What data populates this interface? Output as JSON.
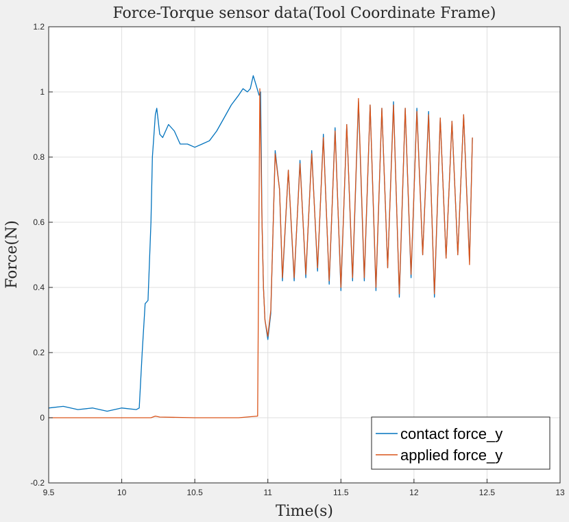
{
  "chart_data": {
    "type": "line",
    "title": "Force-Torque sensor data(Tool Coordinate Frame)",
    "xlabel": "Time(s)",
    "ylabel": "Force(N)",
    "xlim": [
      9.5,
      13
    ],
    "ylim": [
      -0.2,
      1.2
    ],
    "xticks": [
      "9.5",
      "10",
      "10.5",
      "11",
      "11.5",
      "12",
      "12.5",
      "13"
    ],
    "yticks": [
      "-0.2",
      "0",
      "0.2",
      "0.4",
      "0.6",
      "0.8",
      "1",
      "1.2"
    ],
    "grid": true,
    "legend_position": "bottom-right",
    "series": [
      {
        "name": "contact force_y",
        "color": "#0072BD",
        "points": [
          [
            9.5,
            0.03
          ],
          [
            9.6,
            0.035
          ],
          [
            9.7,
            0.025
          ],
          [
            9.8,
            0.03
          ],
          [
            9.9,
            0.02
          ],
          [
            10.0,
            0.03
          ],
          [
            10.1,
            0.025
          ],
          [
            10.12,
            0.03
          ],
          [
            10.14,
            0.2
          ],
          [
            10.16,
            0.35
          ],
          [
            10.18,
            0.36
          ],
          [
            10.2,
            0.6
          ],
          [
            10.21,
            0.8
          ],
          [
            10.23,
            0.93
          ],
          [
            10.24,
            0.95
          ],
          [
            10.26,
            0.87
          ],
          [
            10.28,
            0.86
          ],
          [
            10.32,
            0.9
          ],
          [
            10.36,
            0.88
          ],
          [
            10.4,
            0.84
          ],
          [
            10.45,
            0.84
          ],
          [
            10.5,
            0.83
          ],
          [
            10.55,
            0.84
          ],
          [
            10.6,
            0.85
          ],
          [
            10.65,
            0.88
          ],
          [
            10.7,
            0.92
          ],
          [
            10.75,
            0.96
          ],
          [
            10.8,
            0.99
          ],
          [
            10.83,
            1.01
          ],
          [
            10.86,
            1.0
          ],
          [
            10.88,
            1.01
          ],
          [
            10.9,
            1.05
          ],
          [
            10.92,
            1.02
          ],
          [
            10.94,
            0.99
          ],
          [
            10.95,
            1.0
          ],
          [
            10.96,
            0.6
          ],
          [
            10.97,
            0.4
          ],
          [
            10.98,
            0.3
          ],
          [
            11.0,
            0.24
          ],
          [
            11.02,
            0.32
          ],
          [
            11.05,
            0.82
          ],
          [
            11.08,
            0.7
          ],
          [
            11.1,
            0.42
          ],
          [
            11.14,
            0.76
          ],
          [
            11.18,
            0.42
          ],
          [
            11.22,
            0.79
          ],
          [
            11.26,
            0.43
          ],
          [
            11.3,
            0.82
          ],
          [
            11.34,
            0.45
          ],
          [
            11.38,
            0.87
          ],
          [
            11.42,
            0.41
          ],
          [
            11.46,
            0.89
          ],
          [
            11.5,
            0.39
          ],
          [
            11.54,
            0.9
          ],
          [
            11.58,
            0.42
          ],
          [
            11.62,
            0.97
          ],
          [
            11.66,
            0.42
          ],
          [
            11.7,
            0.96
          ],
          [
            11.74,
            0.39
          ],
          [
            11.78,
            0.95
          ],
          [
            11.82,
            0.46
          ],
          [
            11.86,
            0.97
          ],
          [
            11.9,
            0.37
          ],
          [
            11.94,
            0.95
          ],
          [
            11.98,
            0.43
          ],
          [
            12.02,
            0.95
          ],
          [
            12.06,
            0.5
          ],
          [
            12.1,
            0.94
          ],
          [
            12.14,
            0.37
          ],
          [
            12.18,
            0.92
          ],
          [
            12.22,
            0.49
          ],
          [
            12.26,
            0.91
          ],
          [
            12.3,
            0.5
          ],
          [
            12.34,
            0.93
          ],
          [
            12.38,
            0.48
          ],
          [
            12.4,
            0.86
          ]
        ]
      },
      {
        "name": "applied force_y",
        "color": "#D95319",
        "points": [
          [
            9.5,
            0.0
          ],
          [
            10.2,
            0.0
          ],
          [
            10.23,
            0.005
          ],
          [
            10.26,
            0.002
          ],
          [
            10.5,
            0.0
          ],
          [
            10.8,
            0.0
          ],
          [
            10.93,
            0.005
          ],
          [
            10.945,
            1.01
          ],
          [
            10.96,
            0.6
          ],
          [
            10.97,
            0.4
          ],
          [
            10.98,
            0.3
          ],
          [
            11.0,
            0.25
          ],
          [
            11.02,
            0.33
          ],
          [
            11.05,
            0.81
          ],
          [
            11.08,
            0.7
          ],
          [
            11.1,
            0.43
          ],
          [
            11.14,
            0.76
          ],
          [
            11.18,
            0.43
          ],
          [
            11.22,
            0.78
          ],
          [
            11.26,
            0.44
          ],
          [
            11.3,
            0.81
          ],
          [
            11.34,
            0.46
          ],
          [
            11.38,
            0.86
          ],
          [
            11.42,
            0.42
          ],
          [
            11.46,
            0.88
          ],
          [
            11.5,
            0.4
          ],
          [
            11.54,
            0.9
          ],
          [
            11.58,
            0.43
          ],
          [
            11.62,
            0.98
          ],
          [
            11.66,
            0.43
          ],
          [
            11.7,
            0.96
          ],
          [
            11.74,
            0.4
          ],
          [
            11.78,
            0.95
          ],
          [
            11.82,
            0.46
          ],
          [
            11.86,
            0.96
          ],
          [
            11.9,
            0.38
          ],
          [
            11.94,
            0.95
          ],
          [
            11.98,
            0.44
          ],
          [
            12.02,
            0.94
          ],
          [
            12.06,
            0.5
          ],
          [
            12.1,
            0.93
          ],
          [
            12.14,
            0.38
          ],
          [
            12.18,
            0.92
          ],
          [
            12.22,
            0.49
          ],
          [
            12.26,
            0.91
          ],
          [
            12.3,
            0.5
          ],
          [
            12.34,
            0.93
          ],
          [
            12.38,
            0.47
          ],
          [
            12.4,
            0.86
          ]
        ]
      }
    ]
  }
}
